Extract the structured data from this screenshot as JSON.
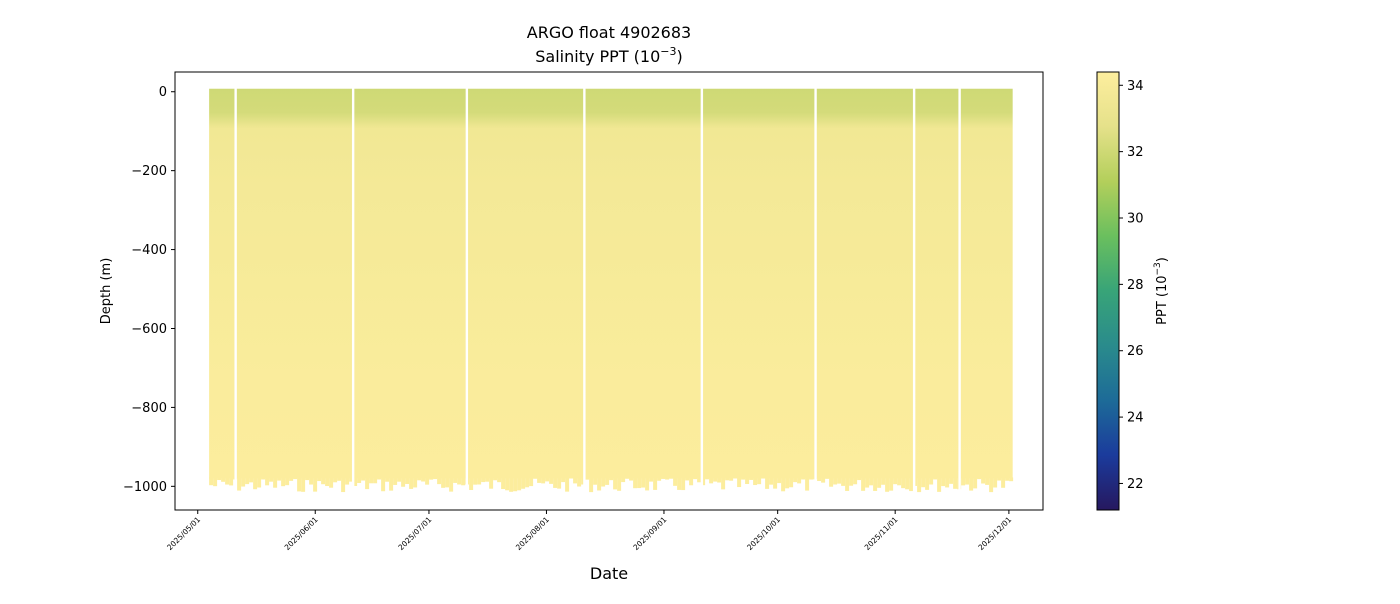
{
  "chart_data": {
    "type": "heatmap",
    "title": "ARGO float 4902683",
    "subtitle": "Salinity PPT (10",
    "subtitle_exponent": "−3",
    "subtitle_close": ")",
    "xlabel": "Date",
    "ylabel": "Depth (m)",
    "ylim": [
      -1060,
      50
    ],
    "xlim": [
      "2025-04-25",
      "2025-12-10"
    ],
    "grid": false,
    "y_ticks": [
      {
        "value": 0,
        "label": "0"
      },
      {
        "value": -200,
        "label": "−200"
      },
      {
        "value": -400,
        "label": "−400"
      },
      {
        "value": -600,
        "label": "−600"
      },
      {
        "value": -800,
        "label": "−800"
      },
      {
        "value": -1000,
        "label": "−1000"
      }
    ],
    "x_ticks": [
      {
        "date": "2025-05-01",
        "label": "2025/05/01"
      },
      {
        "date": "2025-06-01",
        "label": "2025/06/01"
      },
      {
        "date": "2025-07-01",
        "label": "2025/07/01"
      },
      {
        "date": "2025-08-01",
        "label": "2025/08/01"
      },
      {
        "date": "2025-09-01",
        "label": "2025/09/01"
      },
      {
        "date": "2025-10-01",
        "label": "2025/10/01"
      },
      {
        "date": "2025-11-01",
        "label": "2025/11/01"
      },
      {
        "date": "2025-12-01",
        "label": "2025/12/01"
      }
    ],
    "data_start": "2025-05-04",
    "data_end": "2025-12-02",
    "data_gaps": [
      "2025-05-11",
      "2025-06-11",
      "2025-07-11",
      "2025-08-11",
      "2025-09-11",
      "2025-10-11",
      "2025-11-06",
      "2025-11-18"
    ],
    "bottom_depth_min": -1015,
    "bottom_depth_typical": -980,
    "profile": [
      {
        "depth": 0,
        "salinity": 32.0
      },
      {
        "depth": -60,
        "salinity": 32.2
      },
      {
        "depth": -100,
        "salinity": 33.6
      },
      {
        "depth": -250,
        "salinity": 33.8
      },
      {
        "depth": -500,
        "salinity": 34.0
      },
      {
        "depth": -750,
        "salinity": 34.2
      },
      {
        "depth": -1000,
        "salinity": 34.3
      }
    ],
    "colorbar": {
      "label": "PPT (10",
      "label_exponent": "−3",
      "label_close": ")",
      "range": [
        21.2,
        34.4
      ],
      "ticks": [
        {
          "value": 22,
          "label": "22"
        },
        {
          "value": 24,
          "label": "24"
        },
        {
          "value": 26,
          "label": "26"
        },
        {
          "value": 28,
          "label": "28"
        },
        {
          "value": 30,
          "label": "30"
        },
        {
          "value": 32,
          "label": "32"
        },
        {
          "value": 34,
          "label": "34"
        }
      ],
      "colormap_stops": [
        "#26185f",
        "#1b3b9c",
        "#1d6b98",
        "#2a8b8c",
        "#38a478",
        "#6abf5e",
        "#b3cf5b",
        "#e5e18a",
        "#fdee9e"
      ]
    }
  }
}
